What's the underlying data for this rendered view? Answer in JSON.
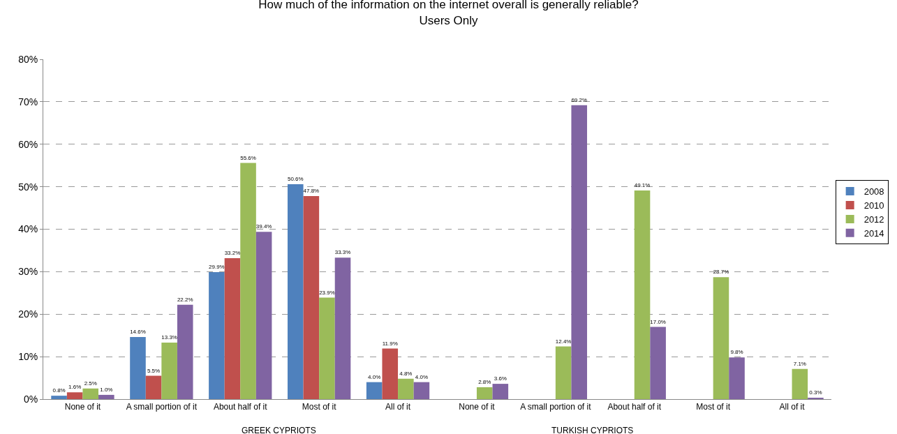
{
  "chart_data": {
    "type": "bar",
    "title": "How much of the information on the internet overall is generally reliable?\nUsers Only",
    "categories": [
      "None of it",
      "A small portion of it",
      "About half of it",
      "Most of it",
      "All of it",
      "None of it",
      "A small portion of it",
      "About half of it",
      "Most of it",
      "All of it"
    ],
    "series": [
      {
        "name": "2008",
        "color": "#4f81bd",
        "values": [
          0.8,
          14.6,
          29.9,
          50.6,
          4.0,
          null,
          null,
          null,
          null,
          null
        ],
        "value_labels": [
          "0.8%",
          "14.6%",
          "29.9%",
          "50.6%",
          "4.0%",
          null,
          null,
          null,
          null,
          null
        ]
      },
      {
        "name": "2010",
        "color": "#c0504d",
        "values": [
          1.6,
          5.5,
          33.2,
          47.8,
          11.9,
          null,
          null,
          null,
          null,
          null
        ],
        "value_labels": [
          "1.6%",
          "5.5%",
          "33.2%",
          "47.8%",
          "11.9%",
          null,
          null,
          null,
          null,
          null
        ]
      },
      {
        "name": "2012",
        "color": "#9bbb59",
        "values": [
          2.5,
          13.3,
          55.6,
          23.9,
          4.8,
          2.8,
          12.4,
          49.1,
          28.7,
          7.1
        ],
        "value_labels": [
          "2.5%",
          "13.3%",
          "55.6%",
          "23.9%",
          "4.8%",
          "2.8%",
          "12.4%",
          "49.1%",
          "28.7%",
          "7.1%"
        ]
      },
      {
        "name": "2014",
        "color": "#8064a2",
        "values": [
          1.0,
          22.2,
          39.4,
          33.3,
          4.0,
          3.6,
          69.2,
          17.0,
          9.8,
          0.3
        ],
        "value_labels": [
          "1.0%",
          "22.2%",
          "39.4%",
          "33.3%",
          "4.0%",
          "3.6%",
          "69.2%",
          "17.0%",
          "9.8%",
          "0.3%"
        ]
      }
    ],
    "ylim": [
      0,
      80
    ],
    "yticks": [
      {
        "value": 0,
        "label": "0%"
      },
      {
        "value": 10,
        "label": "10%"
      },
      {
        "value": 20,
        "label": "20%"
      },
      {
        "value": 30,
        "label": "30%"
      },
      {
        "value": 40,
        "label": "40%"
      },
      {
        "value": 50,
        "label": "50%"
      },
      {
        "value": 60,
        "label": "60%"
      },
      {
        "value": 70,
        "label": "70%"
      },
      {
        "value": 80,
        "label": "80%"
      }
    ],
    "annotations": [
      "GREEK CYPRIOTS",
      "TURKISH CYPRIOTS"
    ],
    "grid": "y",
    "legend": "right"
  }
}
